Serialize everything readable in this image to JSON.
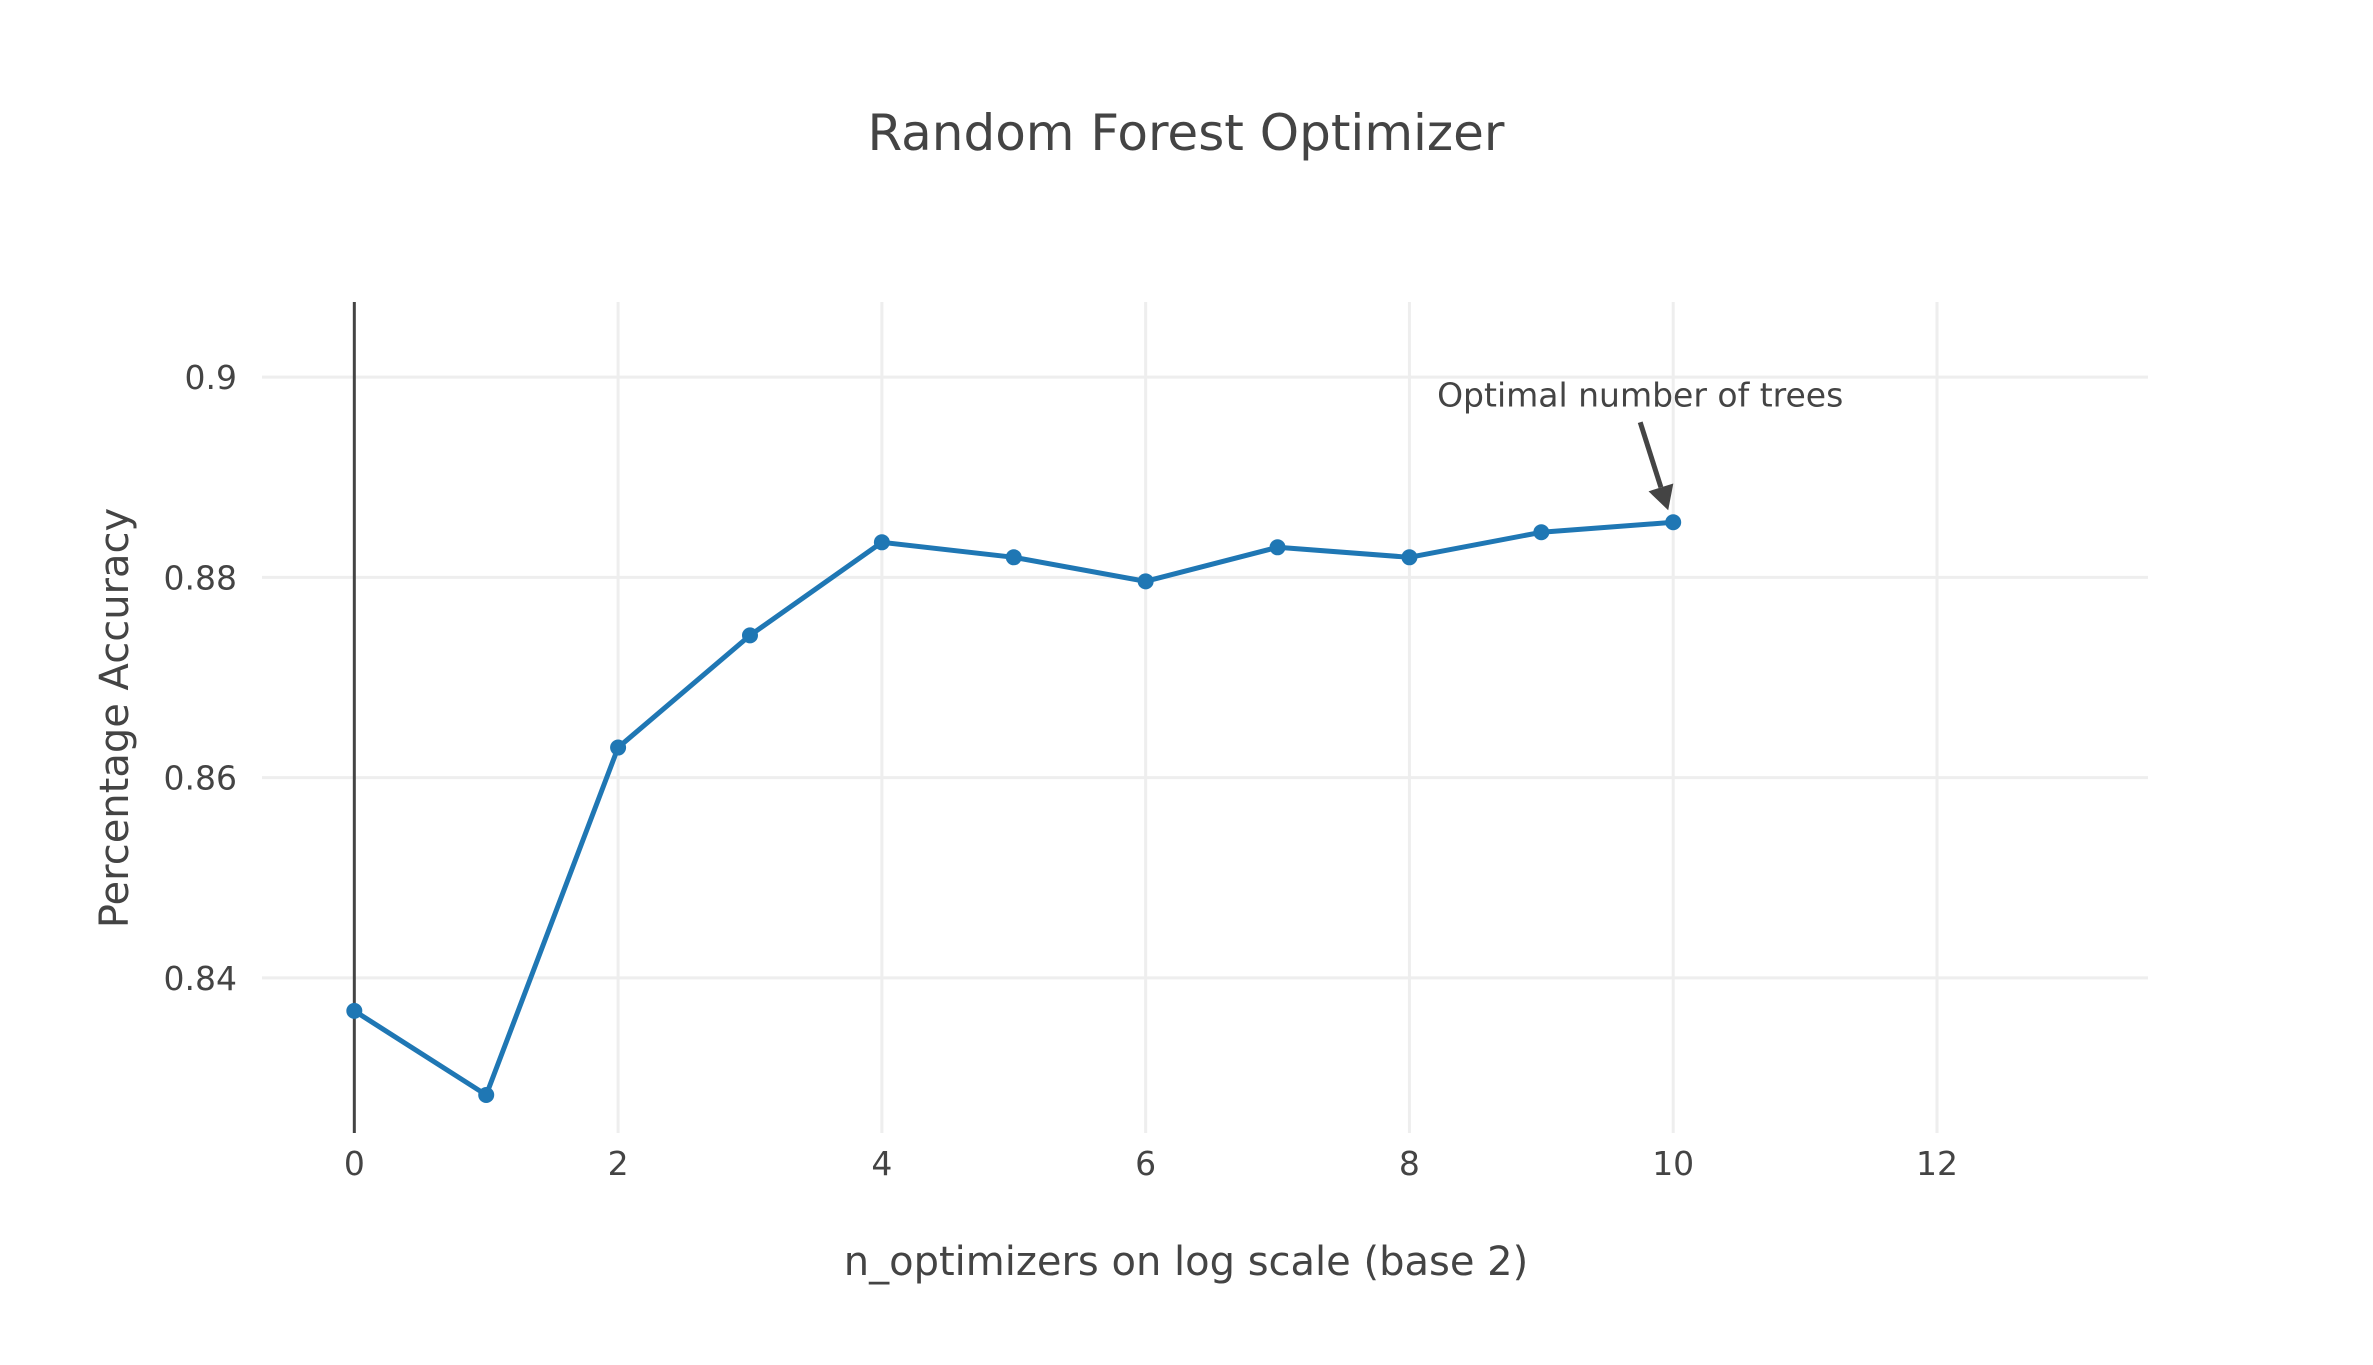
{
  "chart_data": {
    "type": "line",
    "title": "Random Forest Optimizer",
    "xlabel": "n_optimizers on log scale (base 2)",
    "ylabel": "Percentage Accuracy",
    "xlim": [
      -0.7,
      13.6
    ],
    "ylim": [
      0.8245,
      0.9075
    ],
    "x_ticks": [
      0,
      2,
      4,
      6,
      8,
      10,
      12
    ],
    "y_ticks": [
      0.84,
      0.86,
      0.88,
      0.9
    ],
    "x_tick_labels": [
      "0",
      "2",
      "4",
      "6",
      "8",
      "10",
      "12"
    ],
    "y_tick_labels": [
      "0.84",
      "0.86",
      "0.88",
      "0.9"
    ],
    "grid": true,
    "series": [
      {
        "color": "#1f77b4",
        "x": [
          0,
          1,
          2,
          3,
          4,
          5,
          6,
          7,
          8,
          9,
          10
        ],
        "y": [
          0.8367,
          0.8283,
          0.863,
          0.8742,
          0.8835,
          0.882,
          0.8796,
          0.883,
          0.882,
          0.8845,
          0.8855
        ]
      }
    ],
    "annotations": [
      {
        "text": "Optimal number of trees",
        "x": 10,
        "y": 0.8855
      }
    ]
  }
}
